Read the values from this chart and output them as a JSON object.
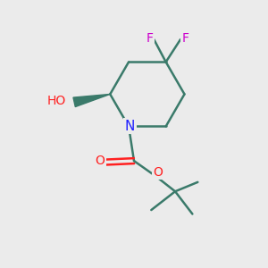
{
  "background_color": "#ebebeb",
  "atom_colors": {
    "N": "#2020ff",
    "O": "#ff2020",
    "F": "#cc00cc",
    "C": "#3a7a6a",
    "H": "#3a7a6a",
    "black": "#000000"
  },
  "bond_color": "#3a7a6a",
  "bond_width": 1.8,
  "figsize": [
    3.0,
    3.0
  ],
  "dpi": 100
}
